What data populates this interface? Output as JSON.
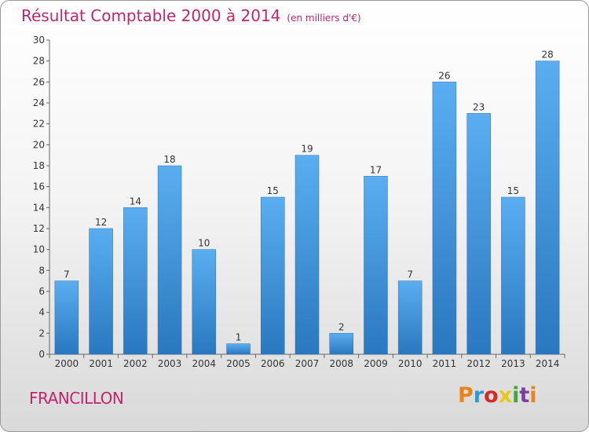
{
  "header": {
    "title": "Résultat Comptable 2000 à 2014",
    "subtitle": "(en milliers d'€)"
  },
  "footer": {
    "commune": "FRANCILLON",
    "logo": "Proxiti",
    "logo_colors": [
      "#e8841a",
      "#2a9ad6",
      "#d32a2a",
      "#e8c61a",
      "#3aaa35",
      "#7a3fa0",
      "#e8841a"
    ]
  },
  "chart_data": {
    "type": "bar",
    "title": "Résultat Comptable 2000 à 2014",
    "subtitle": "(en milliers d'€)",
    "categories": [
      "2000",
      "2001",
      "2002",
      "2003",
      "2004",
      "2005",
      "2006",
      "2007",
      "2008",
      "2009",
      "2010",
      "2011",
      "2012",
      "2013",
      "2014"
    ],
    "values": [
      7,
      12,
      14,
      18,
      10,
      1,
      15,
      19,
      2,
      17,
      7,
      26,
      23,
      15,
      28
    ],
    "ylim": [
      0,
      30
    ],
    "yticks": [
      0,
      2,
      4,
      6,
      8,
      10,
      12,
      14,
      16,
      18,
      20,
      22,
      24,
      26,
      28,
      30
    ],
    "grid": false,
    "bar_color": "#3d8fd6"
  }
}
